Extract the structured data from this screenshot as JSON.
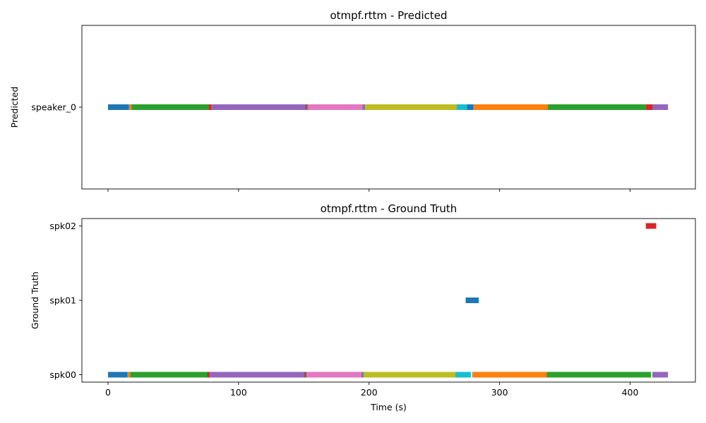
{
  "chart_data": [
    {
      "type": "timeline",
      "title": "otmpf.rttm - Predicted",
      "ylabel": "Predicted",
      "xlabel": "",
      "xlim": [
        -20,
        450
      ],
      "x_ticks": [
        0,
        100,
        200,
        300,
        400
      ],
      "show_x_tick_labels": false,
      "grid": false,
      "tracks": [
        "speaker_0"
      ],
      "segments": [
        {
          "track": "speaker_0",
          "start": 0,
          "end": 16,
          "color": "#1f77b4"
        },
        {
          "track": "speaker_0",
          "start": 16,
          "end": 18,
          "color": "#ff7f0e"
        },
        {
          "track": "speaker_0",
          "start": 18,
          "end": 77,
          "color": "#2ca02c"
        },
        {
          "track": "speaker_0",
          "start": 77,
          "end": 79,
          "color": "#d62728"
        },
        {
          "track": "speaker_0",
          "start": 79,
          "end": 151,
          "color": "#9467bd"
        },
        {
          "track": "speaker_0",
          "start": 151,
          "end": 153,
          "color": "#8c564b"
        },
        {
          "track": "speaker_0",
          "start": 153,
          "end": 195,
          "color": "#e377c2"
        },
        {
          "track": "speaker_0",
          "start": 195,
          "end": 197,
          "color": "#7f7f7f"
        },
        {
          "track": "speaker_0",
          "start": 197,
          "end": 267,
          "color": "#bcbd22"
        },
        {
          "track": "speaker_0",
          "start": 267,
          "end": 275,
          "color": "#17becf"
        },
        {
          "track": "speaker_0",
          "start": 275,
          "end": 280,
          "color": "#1f77b4"
        },
        {
          "track": "speaker_0",
          "start": 280,
          "end": 337,
          "color": "#ff7f0e"
        },
        {
          "track": "speaker_0",
          "start": 337,
          "end": 412,
          "color": "#2ca02c"
        },
        {
          "track": "speaker_0",
          "start": 412,
          "end": 417,
          "color": "#d62728"
        },
        {
          "track": "speaker_0",
          "start": 417,
          "end": 429,
          "color": "#9467bd"
        }
      ]
    },
    {
      "type": "timeline",
      "title": "otmpf.rttm - Ground Truth",
      "ylabel": "Ground Truth",
      "xlabel": "Time (s)",
      "xlim": [
        -20,
        450
      ],
      "x_ticks": [
        0,
        100,
        200,
        300,
        400
      ],
      "show_x_tick_labels": true,
      "grid": false,
      "tracks": [
        "spk00",
        "spk01",
        "spk02"
      ],
      "segments": [
        {
          "track": "spk00",
          "start": 0,
          "end": 15,
          "color": "#1f77b4"
        },
        {
          "track": "spk00",
          "start": 15,
          "end": 17,
          "color": "#ff7f0e"
        },
        {
          "track": "spk00",
          "start": 17,
          "end": 76,
          "color": "#2ca02c"
        },
        {
          "track": "spk00",
          "start": 76,
          "end": 78,
          "color": "#d62728"
        },
        {
          "track": "spk00",
          "start": 78,
          "end": 150,
          "color": "#9467bd"
        },
        {
          "track": "spk00",
          "start": 150,
          "end": 152,
          "color": "#8c564b"
        },
        {
          "track": "spk00",
          "start": 152,
          "end": 194,
          "color": "#e377c2"
        },
        {
          "track": "spk00",
          "start": 194,
          "end": 196,
          "color": "#7f7f7f"
        },
        {
          "track": "spk00",
          "start": 196,
          "end": 266,
          "color": "#bcbd22"
        },
        {
          "track": "spk00",
          "start": 266,
          "end": 278,
          "color": "#17becf"
        },
        {
          "track": "spk00",
          "start": 279,
          "end": 336,
          "color": "#ff7f0e"
        },
        {
          "track": "spk00",
          "start": 336,
          "end": 416,
          "color": "#2ca02c"
        },
        {
          "track": "spk00",
          "start": 417,
          "end": 429,
          "color": "#9467bd"
        },
        {
          "track": "spk01",
          "start": 274,
          "end": 284,
          "color": "#1f77b4"
        },
        {
          "track": "spk02",
          "start": 412,
          "end": 420,
          "color": "#d62728"
        }
      ]
    }
  ]
}
